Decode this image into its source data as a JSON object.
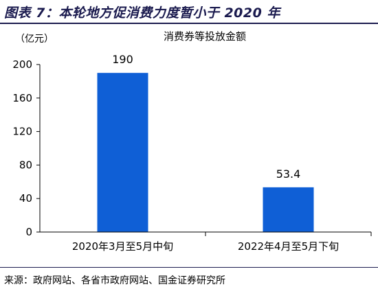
{
  "figure": {
    "title": "图表 7：本轮地方促消费力度暂小于 2020 年",
    "source": "来源：政府网站、各省市政府网站、国金证券研究所"
  },
  "chart_data": {
    "type": "bar",
    "title": "消费券等投放金额",
    "ylabel": "（亿元）",
    "xlabel": "",
    "categories": [
      "2020年3月至5月中旬",
      "2022年4月至5月下旬"
    ],
    "values": [
      190,
      53.4
    ],
    "value_labels": [
      "190",
      "53.4"
    ],
    "ylim": [
      0,
      200
    ],
    "yticks": [
      0,
      40,
      80,
      120,
      160,
      200
    ],
    "ytick_labels": [
      "0",
      "40",
      "80",
      "120",
      "160",
      "200"
    ],
    "grid": false,
    "legend": "none",
    "bar_color": "#0f5fd6"
  }
}
